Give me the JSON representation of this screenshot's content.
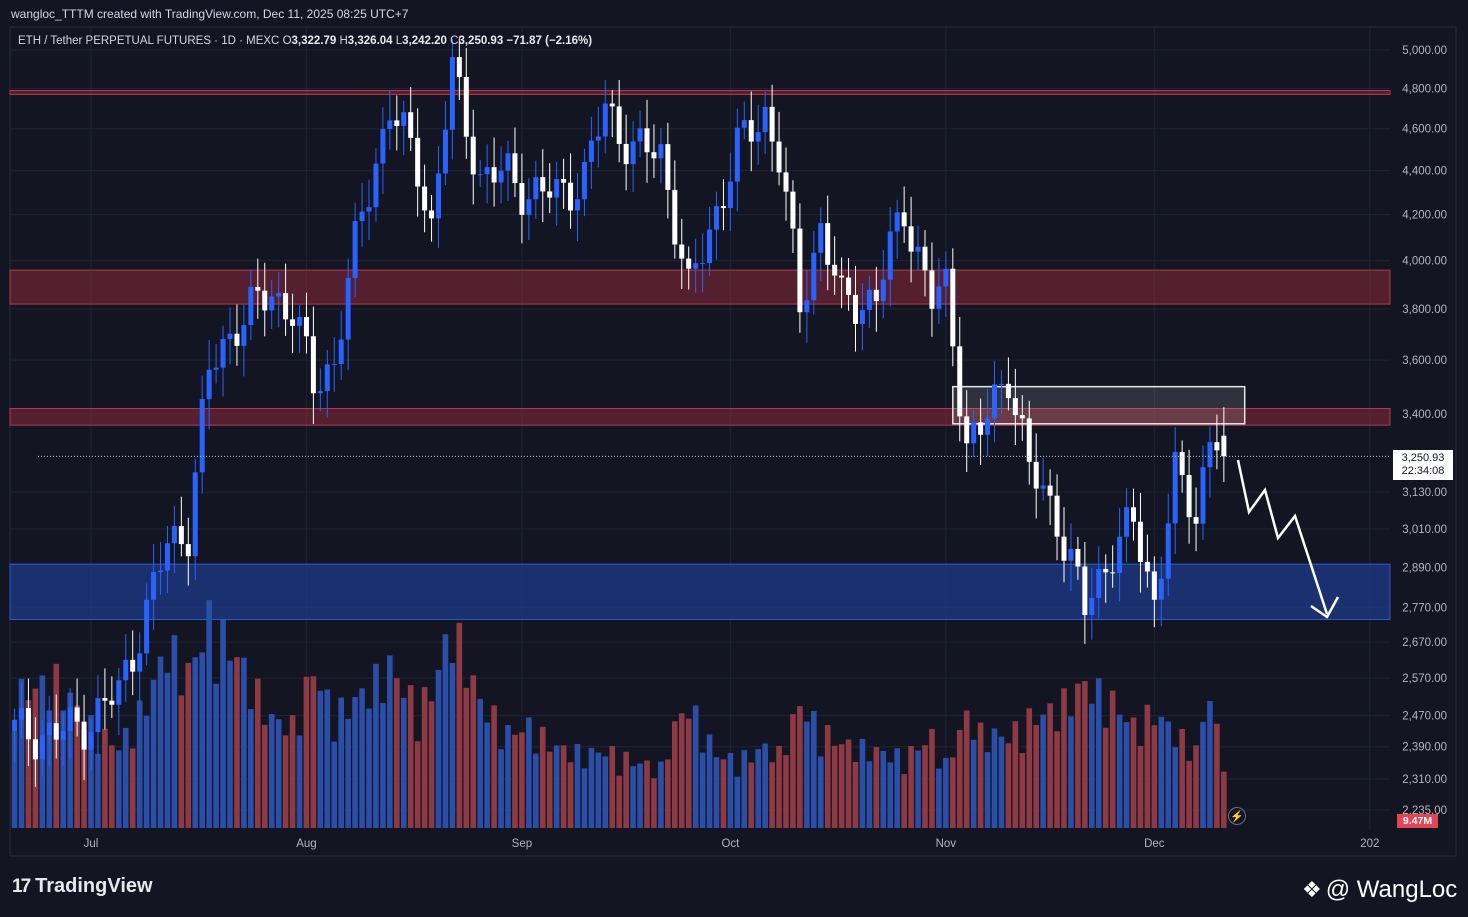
{
  "header": {
    "attribution": "wangloc_TTTM created with TradingView.com, Dec 11, 2025 08:25 UTC+7"
  },
  "legend": {
    "symbol": "ETH / Tether PERPETUAL FUTURES · 1D · MEXC",
    "o_label": "O",
    "o": "3,322.79",
    "h_label": "H",
    "h": "3,326.04",
    "l_label": "L",
    "l": "3,242.20",
    "c_label": "C",
    "c": "3,250.93",
    "change": "−71.87 (−2.16%)"
  },
  "price_tag": {
    "price": "3,250.93",
    "countdown": "22:34:08"
  },
  "volume_tag": "9.47M",
  "footer": {
    "brand": "TradingView",
    "watermark": "@ WangLoc"
  },
  "colors": {
    "background": "#131622",
    "bull": "#2962ff",
    "bear": "#ffffff",
    "vol_up": "#2b4fa8",
    "vol_down": "#8e3a44",
    "resistance_zone": "#8b2a3a",
    "support_zone": "#1e3a8a"
  },
  "chart_data": {
    "type": "candlestick",
    "scale": "log",
    "y_ticks": [
      "5,000.00",
      "4,800.00",
      "4,600.00",
      "4,400.00",
      "4,200.00",
      "4,000.00",
      "3,800.00",
      "3,600.00",
      "3,400.00",
      "3,130.00",
      "3,010.00",
      "2,890.00",
      "2,770.00",
      "2,670.00",
      "2,570.00",
      "2,470.00",
      "2,390.00",
      "2,310.00",
      "2,235.00"
    ],
    "y_tick_values": [
      5000,
      4800,
      4600,
      4400,
      4200,
      4000,
      3800,
      3600,
      3400,
      3130,
      3010,
      2890,
      2770,
      2670,
      2570,
      2470,
      2390,
      2310,
      2235
    ],
    "x_ticks": [
      {
        "label": "Jul",
        "date": "2025-07-01"
      },
      {
        "label": "Aug",
        "date": "2025-08-01"
      },
      {
        "label": "Sep",
        "date": "2025-09-01"
      },
      {
        "label": "Oct",
        "date": "2025-10-01"
      },
      {
        "label": "Nov",
        "date": "2025-11-01"
      },
      {
        "label": "Dec",
        "date": "2025-12-01"
      },
      {
        "label": "202",
        "date": "2026-01-01"
      }
    ],
    "zones": [
      {
        "name": "resistance-line-4800",
        "low": 4770,
        "high": 4790,
        "color": "#8b2a3a"
      },
      {
        "name": "resistance-zone-3900",
        "low": 3820,
        "high": 3960,
        "color": "#8b2a3a"
      },
      {
        "name": "resistance-zone-3400",
        "low": 3360,
        "high": 3420,
        "color": "#8b2a3a"
      },
      {
        "name": "support-zone-2800",
        "low": 2735,
        "high": 2900,
        "color": "#1e3a8a"
      },
      {
        "name": "supply-box",
        "low": 3365,
        "high": 3500,
        "color": "#ffffff",
        "start": "2025-11-02",
        "end": "2025-12-14"
      }
    ],
    "last_price": 3250.93,
    "anchors": [
      {
        "date": "2025-06-20",
        "close": 2430,
        "volume": 3.8
      },
      {
        "date": "2025-06-26",
        "close": 2420,
        "volume": 4.2
      },
      {
        "date": "2025-07-01",
        "close": 2460,
        "volume": 2.9
      },
      {
        "date": "2025-07-05",
        "close": 2530,
        "volume": 2.3
      },
      {
        "date": "2025-07-09",
        "close": 2760,
        "volume": 3.6
      },
      {
        "date": "2025-07-12",
        "close": 2960,
        "volume": 5.2
      },
      {
        "date": "2025-07-15",
        "close": 3010,
        "volume": 4.4
      },
      {
        "date": "2025-07-18",
        "close": 3550,
        "volume": 5.9
      },
      {
        "date": "2025-07-22",
        "close": 3750,
        "volume": 4.9
      },
      {
        "date": "2025-07-27",
        "close": 3860,
        "volume": 3.1
      },
      {
        "date": "2025-07-30",
        "close": 3800,
        "volume": 2.9
      },
      {
        "date": "2025-08-02",
        "close": 3500,
        "volume": 4.5
      },
      {
        "date": "2025-08-05",
        "close": 3600,
        "volume": 3.2
      },
      {
        "date": "2025-08-09",
        "close": 4200,
        "volume": 3.8
      },
      {
        "date": "2025-08-13",
        "close": 4700,
        "volume": 4.6
      },
      {
        "date": "2025-08-17",
        "close": 4420,
        "volume": 3.4
      },
      {
        "date": "2025-08-19",
        "close": 4150,
        "volume": 3.9
      },
      {
        "date": "2025-08-22",
        "close": 4880,
        "volume": 5.8
      },
      {
        "date": "2025-08-26",
        "close": 4370,
        "volume": 3.6
      },
      {
        "date": "2025-08-30",
        "close": 4380,
        "volume": 2.7
      },
      {
        "date": "2025-09-02",
        "close": 4300,
        "volume": 2.9
      },
      {
        "date": "2025-09-06",
        "close": 4290,
        "volume": 2.3
      },
      {
        "date": "2025-09-10",
        "close": 4370,
        "volume": 2.1
      },
      {
        "date": "2025-09-13",
        "close": 4700,
        "volume": 2.2
      },
      {
        "date": "2025-09-17",
        "close": 4500,
        "volume": 1.9
      },
      {
        "date": "2025-09-21",
        "close": 4480,
        "volume": 1.7
      },
      {
        "date": "2025-09-23",
        "close": 4180,
        "volume": 2.9
      },
      {
        "date": "2025-09-25",
        "close": 3860,
        "volume": 3.5
      },
      {
        "date": "2025-09-29",
        "close": 4220,
        "volume": 2.1
      },
      {
        "date": "2025-10-02",
        "close": 4500,
        "volume": 1.9
      },
      {
        "date": "2025-10-06",
        "close": 4680,
        "volume": 2.3
      },
      {
        "date": "2025-10-08",
        "close": 4470,
        "volume": 2.1
      },
      {
        "date": "2025-10-11",
        "close": 3800,
        "volume": 3.5
      },
      {
        "date": "2025-10-14",
        "close": 4150,
        "volume": 2.8
      },
      {
        "date": "2025-10-17",
        "close": 3820,
        "volume": 2.4
      },
      {
        "date": "2025-10-22",
        "close": 3850,
        "volume": 2.2
      },
      {
        "date": "2025-10-26",
        "close": 4230,
        "volume": 2.0
      },
      {
        "date": "2025-10-30",
        "close": 3830,
        "volume": 2.6
      },
      {
        "date": "2025-11-01",
        "close": 3880,
        "volume": 1.8
      },
      {
        "date": "2025-11-04",
        "close": 3300,
        "volume": 3.2
      },
      {
        "date": "2025-11-06",
        "close": 3330,
        "volume": 2.7
      },
      {
        "date": "2025-11-10",
        "close": 3560,
        "volume": 2.6
      },
      {
        "date": "2025-11-13",
        "close": 3200,
        "volume": 3.1
      },
      {
        "date": "2025-11-17",
        "close": 3050,
        "volume": 3.4
      },
      {
        "date": "2025-11-21",
        "close": 2760,
        "volume": 4.1
      },
      {
        "date": "2025-11-25",
        "close": 2950,
        "volume": 3.6
      },
      {
        "date": "2025-11-28",
        "close": 3020,
        "volume": 2.9
      },
      {
        "date": "2025-12-01",
        "close": 2790,
        "volume": 3.3
      },
      {
        "date": "2025-12-04",
        "close": 3180,
        "volume": 2.7
      },
      {
        "date": "2025-12-07",
        "close": 3050,
        "volume": 2.2
      },
      {
        "date": "2025-12-09",
        "close": 3340,
        "volume": 3.9
      },
      {
        "date": "2025-12-10",
        "close": 3320,
        "volume": 2.7
      },
      {
        "date": "2025-12-11",
        "close": 3250.93,
        "volume": 2.2
      }
    ]
  }
}
